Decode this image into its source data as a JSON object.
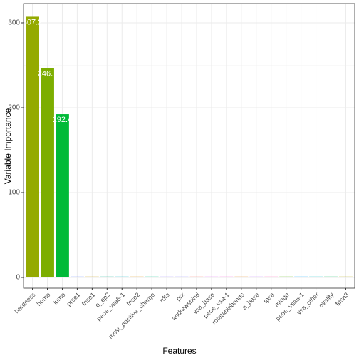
{
  "chart_data": {
    "type": "bar",
    "x_label": "Features",
    "y_label": "Variable Importance",
    "categories": [
      "hardness",
      "homo",
      "lumo",
      "prse1",
      "fnse1",
      "o_ep2",
      "peoe_vsa5-1",
      "fnse2",
      "most_positive_charge",
      "rdta",
      "prx",
      "andrewsbind",
      "vsa_base",
      "peoe_vsa-1",
      "rotatablebonds",
      "a_base",
      "tpsa",
      "mlogp",
      "peoe_vsa6-1",
      "vsa_other",
      "ovality",
      "fpsa3"
    ],
    "values": [
      307.2,
      246.7,
      192.4,
      1,
      1,
      1,
      1,
      1,
      1,
      1,
      1,
      1,
      1,
      1,
      1,
      1,
      1,
      1,
      1,
      1,
      1,
      1
    ],
    "value_labels": [
      "307.2",
      "246.7",
      "192.4",
      null,
      null,
      null,
      null,
      null,
      null,
      null,
      null,
      null,
      null,
      null,
      null,
      null,
      null,
      null,
      null,
      null,
      null,
      null
    ],
    "colors": [
      "#94aa00",
      "#7cae00",
      "#00ba38",
      "#6f8cff",
      "#c49a00",
      "#00b08a",
      "#00b4c4",
      "#d89000",
      "#00c08b",
      "#a58aff",
      "#9590ff",
      "#f8766d",
      "#e76bf3",
      "#fa62db",
      "#e68613",
      "#c77cff",
      "#ff62bc",
      "#53b400",
      "#00a9ff",
      "#00bfc4",
      "#00bc56",
      "#aba300"
    ],
    "ylim": [
      -12.6,
      322.7
    ],
    "yticks": [
      0,
      100,
      200,
      300
    ],
    "grid": true
  }
}
